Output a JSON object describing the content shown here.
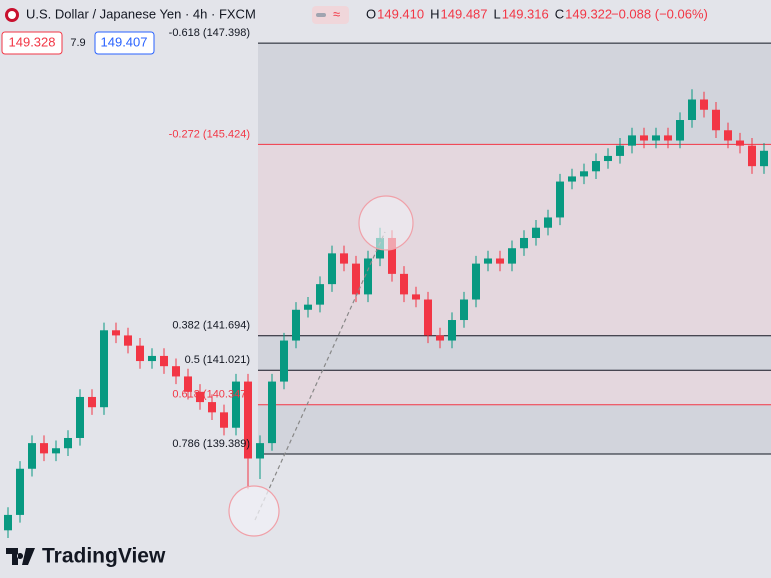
{
  "header": {
    "title": "U.S. Dollar / Japanese Yen · 4h · FXCM",
    "ohlc": [
      [
        "O",
        "149.410"
      ],
      [
        "H",
        "149.487"
      ],
      [
        "L",
        "149.316"
      ],
      [
        "C",
        "149.322"
      ]
    ],
    "change": "−0.088 (−0.06%)",
    "sell": "149.328",
    "spread": "7.9",
    "buy": "149.407"
  },
  "chart_data": {
    "type": "candlestick",
    "ylim": [
      136.97,
      148.24
    ],
    "up_color": "#089981",
    "down_color": "#f23645",
    "fib_levels": [
      {
        "label": "-0.618 (147.398)",
        "price": 147.398,
        "color": "#131722"
      },
      {
        "label": "-0.272 (145.424)",
        "price": 145.424,
        "color": "#f23645"
      },
      {
        "label": "0.382 (141.694)",
        "price": 141.694,
        "color": "#131722"
      },
      {
        "label": "0.5 (141.021)",
        "price": 141.021,
        "color": "#131722"
      },
      {
        "label": "0.618 (140.347)",
        "price": 140.347,
        "color": "#f23645"
      },
      {
        "label": "0.786 (139.389)",
        "price": 139.389,
        "color": "#131722"
      }
    ],
    "candles": [
      [
        137.9,
        138.35,
        137.75,
        138.2
      ],
      [
        138.2,
        139.25,
        138.05,
        139.1
      ],
      [
        139.1,
        139.75,
        138.95,
        139.6
      ],
      [
        139.6,
        139.75,
        139.25,
        139.4
      ],
      [
        139.4,
        139.65,
        139.25,
        139.5
      ],
      [
        139.5,
        139.85,
        139.35,
        139.7
      ],
      [
        139.7,
        140.65,
        139.55,
        140.5
      ],
      [
        140.5,
        140.65,
        140.15,
        140.3
      ],
      [
        140.3,
        141.95,
        140.15,
        141.8
      ],
      [
        141.8,
        141.95,
        141.55,
        141.7
      ],
      [
        141.7,
        141.85,
        141.35,
        141.5
      ],
      [
        141.5,
        141.65,
        141.05,
        141.2
      ],
      [
        141.2,
        141.45,
        141.05,
        141.3
      ],
      [
        141.3,
        141.45,
        140.95,
        141.1
      ],
      [
        141.1,
        141.25,
        140.75,
        140.9
      ],
      [
        140.9,
        141.05,
        140.45,
        140.6
      ],
      [
        140.6,
        140.75,
        140.25,
        140.4
      ],
      [
        140.4,
        140.55,
        140.05,
        140.2
      ],
      [
        140.2,
        140.35,
        139.75,
        139.9
      ],
      [
        139.9,
        140.95,
        139.75,
        140.8
      ],
      [
        140.8,
        140.95,
        138.7,
        139.3
      ],
      [
        139.3,
        139.75,
        138.9,
        139.6
      ],
      [
        139.6,
        140.95,
        139.45,
        140.8
      ],
      [
        140.8,
        141.75,
        140.65,
        141.6
      ],
      [
        141.6,
        142.35,
        141.45,
        142.2
      ],
      [
        142.2,
        142.45,
        142.05,
        142.3
      ],
      [
        142.3,
        142.85,
        142.15,
        142.7
      ],
      [
        142.7,
        143.45,
        142.55,
        143.3
      ],
      [
        143.3,
        143.45,
        142.95,
        143.1
      ],
      [
        143.1,
        143.25,
        142.35,
        142.5
      ],
      [
        142.5,
        143.35,
        142.35,
        143.2
      ],
      [
        143.2,
        143.8,
        143.05,
        143.6
      ],
      [
        143.6,
        143.75,
        142.75,
        142.9
      ],
      [
        142.9,
        143.05,
        142.35,
        142.5
      ],
      [
        142.5,
        142.65,
        142.25,
        142.4
      ],
      [
        142.4,
        142.55,
        141.55,
        141.7
      ],
      [
        141.7,
        141.85,
        141.45,
        141.6
      ],
      [
        141.6,
        142.15,
        141.45,
        142.0
      ],
      [
        142.0,
        142.55,
        141.85,
        142.4
      ],
      [
        142.4,
        143.25,
        142.25,
        143.1
      ],
      [
        143.1,
        143.35,
        142.95,
        143.2
      ],
      [
        143.2,
        143.35,
        142.95,
        143.1
      ],
      [
        143.1,
        143.55,
        142.95,
        143.4
      ],
      [
        143.4,
        143.75,
        143.25,
        143.6
      ],
      [
        143.6,
        143.95,
        143.45,
        143.8
      ],
      [
        143.8,
        144.15,
        143.65,
        144.0
      ],
      [
        144.0,
        144.85,
        143.85,
        144.7
      ],
      [
        144.7,
        144.95,
        144.55,
        144.8
      ],
      [
        144.8,
        145.05,
        144.65,
        144.9
      ],
      [
        144.9,
        145.25,
        144.75,
        145.1
      ],
      [
        145.1,
        145.35,
        144.95,
        145.2
      ],
      [
        145.2,
        145.55,
        145.05,
        145.4
      ],
      [
        145.4,
        145.75,
        145.25,
        145.6
      ],
      [
        145.6,
        145.75,
        145.35,
        145.5
      ],
      [
        145.5,
        145.75,
        145.35,
        145.6
      ],
      [
        145.6,
        145.75,
        145.35,
        145.5
      ],
      [
        145.5,
        146.05,
        145.35,
        145.9
      ],
      [
        145.9,
        146.5,
        145.75,
        146.3
      ],
      [
        146.3,
        146.45,
        145.95,
        146.1
      ],
      [
        146.1,
        146.25,
        145.55,
        145.7
      ],
      [
        145.7,
        145.85,
        145.35,
        145.5
      ],
      [
        145.5,
        145.65,
        145.25,
        145.4
      ],
      [
        145.4,
        145.55,
        144.85,
        145.0
      ],
      [
        145.0,
        145.45,
        144.85,
        145.3
      ]
    ],
    "watermark": "TradingView"
  }
}
